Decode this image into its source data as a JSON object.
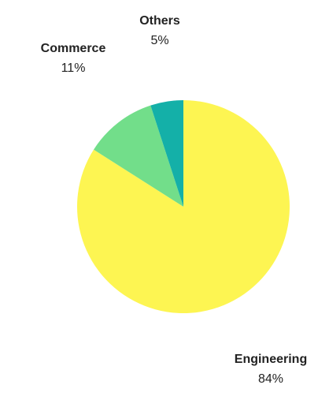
{
  "chart_data": {
    "type": "pie",
    "categories": [
      "Engineering",
      "Commerce",
      "Others"
    ],
    "values": [
      84,
      11,
      5
    ],
    "value_labels": [
      "84%",
      "11%",
      "5%"
    ],
    "colors": [
      "#fdf552",
      "#72de8a",
      "#14b0a8"
    ]
  }
}
